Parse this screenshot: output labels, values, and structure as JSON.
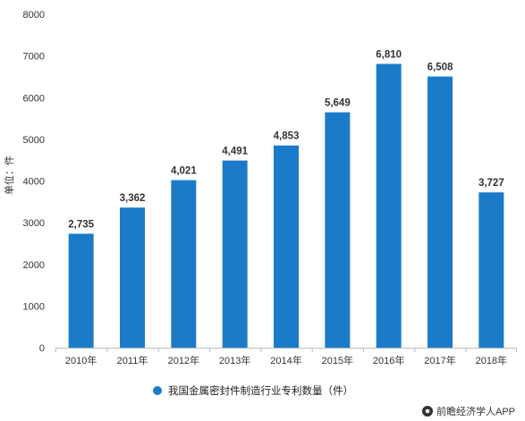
{
  "chart_data": {
    "type": "bar",
    "categories": [
      "2010年",
      "2011年",
      "2012年",
      "2013年",
      "2014年",
      "2015年",
      "2016年",
      "2017年",
      "2018年"
    ],
    "values": [
      2735,
      3362,
      4021,
      4491,
      4853,
      5649,
      6810,
      6508,
      3727
    ],
    "data_labels": [
      "2,735",
      "3,362",
      "4,021",
      "4,491",
      "4,853",
      "5,649",
      "6,810",
      "6,508",
      "3,727"
    ],
    "ylabel": "单位：件",
    "ylim": [
      0,
      8000
    ],
    "yticks": [
      0,
      1000,
      2000,
      3000,
      4000,
      5000,
      6000,
      7000,
      8000
    ],
    "grid": false,
    "legend": {
      "position": "bottom",
      "entries": [
        "我国金属密封件制造行业专利数量（件）"
      ]
    },
    "bar_color": "#1c7bc9"
  },
  "source": {
    "text": "前瞻经济学人APP",
    "icon": "qianzhan-logo-icon"
  }
}
